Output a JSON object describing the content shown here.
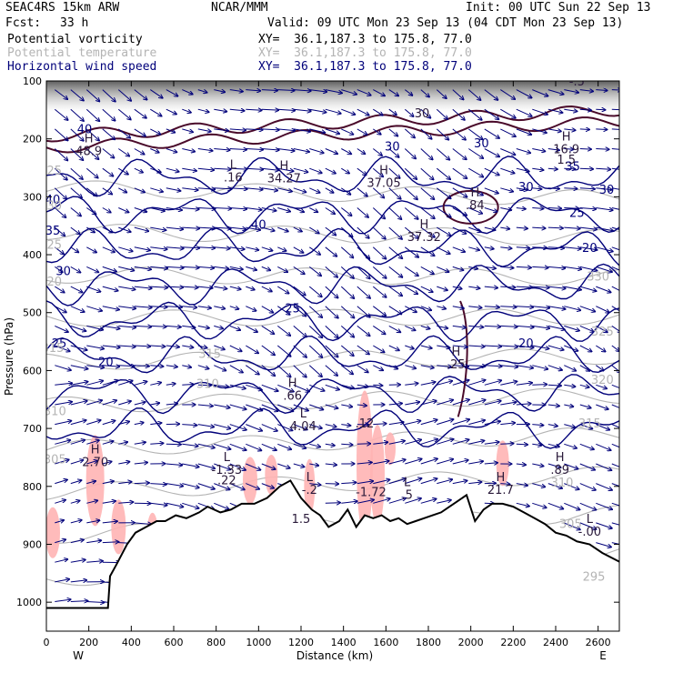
{
  "header": {
    "model": "SEAC4RS 15km ARW",
    "center": "NCAR/MMM",
    "init": "Init: 00 UTC Sun 22 Sep 13",
    "fcst_label": "Fcst:",
    "fcst_value": "33 h",
    "valid": "Valid: 09 UTC Mon 23 Sep 13 (04 CDT Mon 23 Sep 13)",
    "fields": [
      {
        "name": "Potential vorticity",
        "xy": "XY=  36.1,187.3 to 175.8, 77.0",
        "color": "#000000"
      },
      {
        "name": "Potential temperature",
        "xy": "XY=  36.1,187.3 to 175.8, 77.0",
        "color": "#b4b4b4"
      },
      {
        "name": "Horizontal wind speed",
        "xy": "XY=  36.1,187.3 to 175.8, 77.0",
        "color": "#00007a"
      }
    ]
  },
  "chart_data": {
    "type": "contour",
    "xlabel": "Distance (km)",
    "ylabel": "Pressure (hPa)",
    "xlim": [
      0,
      2700
    ],
    "ylim": [
      1050,
      100
    ],
    "xticks": [
      0,
      200,
      400,
      600,
      800,
      1000,
      1200,
      1400,
      1600,
      1800,
      2000,
      2200,
      2400,
      2600
    ],
    "yticks": [
      100,
      200,
      300,
      400,
      500,
      600,
      700,
      800,
      900,
      1000
    ],
    "west_label": "W",
    "east_label": "E",
    "colors": {
      "wind": "#00007a",
      "theta": "#b4b4b4",
      "pv": "#4a0a2a",
      "pv_shade": "#ffb4b4",
      "terrain": "#000000"
    },
    "terrain": {
      "x": [
        0,
        80,
        180,
        290,
        300,
        330,
        380,
        420,
        470,
        520,
        560,
        610,
        660,
        720,
        760,
        820,
        870,
        920,
        980,
        1040,
        1100,
        1150,
        1200,
        1250,
        1290,
        1330,
        1380,
        1420,
        1460,
        1500,
        1540,
        1580,
        1620,
        1660,
        1700,
        1740,
        1780,
        1820,
        1860,
        1900,
        1940,
        1980,
        2020,
        2060,
        2100,
        2150,
        2200,
        2250,
        2300,
        2350,
        2400,
        2450,
        2500,
        2560,
        2620,
        2700
      ],
      "p": [
        1010,
        1010,
        1010,
        1010,
        955,
        935,
        900,
        880,
        870,
        860,
        860,
        850,
        855,
        845,
        835,
        845,
        840,
        830,
        830,
        820,
        800,
        790,
        820,
        840,
        850,
        870,
        860,
        840,
        870,
        850,
        855,
        850,
        860,
        855,
        865,
        860,
        855,
        850,
        845,
        835,
        825,
        815,
        860,
        840,
        830,
        830,
        835,
        845,
        855,
        865,
        880,
        885,
        895,
        900,
        915,
        930
      ]
    },
    "wind_isotachs": [
      5,
      10,
      15,
      20,
      25,
      30,
      35,
      40
    ],
    "wind_labels": [
      {
        "x": 60,
        "p": 560,
        "t": "25"
      },
      {
        "x": 280,
        "p": 592,
        "t": "20"
      },
      {
        "x": 1160,
        "p": 500,
        "t": "25"
      },
      {
        "x": 2260,
        "p": 560,
        "t": "20"
      },
      {
        "x": 2560,
        "p": 395,
        "t": "20"
      },
      {
        "x": 2500,
        "p": 335,
        "t": "25"
      },
      {
        "x": 2640,
        "p": 295,
        "t": "30"
      },
      {
        "x": 2260,
        "p": 290,
        "t": "30"
      },
      {
        "x": 2050,
        "p": 215,
        "t": "30"
      },
      {
        "x": 80,
        "p": 435,
        "t": "30"
      },
      {
        "x": 30,
        "p": 365,
        "t": "35"
      },
      {
        "x": 30,
        "p": 312,
        "t": "40"
      },
      {
        "x": 180,
        "p": 190,
        "t": "40"
      },
      {
        "x": 1000,
        "p": 355,
        "t": "40"
      },
      {
        "x": 1630,
        "p": 220,
        "t": "30"
      },
      {
        "x": 2480,
        "p": 255,
        "t": "35"
      }
    ],
    "theta_labels": [
      {
        "x": 20,
        "p": 262,
        "t": "325"
      },
      {
        "x": 20,
        "p": 322,
        "t": "330"
      },
      {
        "x": 20,
        "p": 390,
        "t": "325"
      },
      {
        "x": 20,
        "p": 453,
        "t": "320"
      },
      {
        "x": 30,
        "p": 568,
        "t": "315"
      },
      {
        "x": 770,
        "p": 578,
        "t": "315"
      },
      {
        "x": 760,
        "p": 630,
        "t": "310"
      },
      {
        "x": 40,
        "p": 677,
        "t": "310"
      },
      {
        "x": 40,
        "p": 760,
        "t": "305"
      },
      {
        "x": 2600,
        "p": 445,
        "t": "330"
      },
      {
        "x": 2620,
        "p": 540,
        "t": "325"
      },
      {
        "x": 2620,
        "p": 623,
        "t": "320"
      },
      {
        "x": 2560,
        "p": 698,
        "t": "315"
      },
      {
        "x": 2430,
        "p": 800,
        "t": "310"
      },
      {
        "x": 2470,
        "p": 872,
        "t": "305"
      },
      {
        "x": 2580,
        "p": 963,
        "t": "295"
      }
    ],
    "hl_markers": [
      {
        "x": 230,
        "p": 762,
        "k": "H",
        "v": "2.70"
      },
      {
        "x": 850,
        "p": 775,
        "k": "L",
        "v": "-1.33"
      },
      {
        "x": 850,
        "p": 793,
        "k": "",
        "v": ".22"
      },
      {
        "x": 1210,
        "p": 700,
        "k": "L",
        "v": "4.04"
      },
      {
        "x": 1500,
        "p": 695,
        "k": "",
        "v": ".12"
      },
      {
        "x": 1160,
        "p": 647,
        "k": "H",
        "v": ".66"
      },
      {
        "x": 1240,
        "p": 810,
        "k": "L",
        "v": "-.2"
      },
      {
        "x": 1530,
        "p": 814,
        "k": "",
        "v": "-1.72"
      },
      {
        "x": 1700,
        "p": 818,
        "k": "L",
        "v": ".5"
      },
      {
        "x": 2140,
        "p": 810,
        "k": "H",
        "v": "21.7"
      },
      {
        "x": 2420,
        "p": 775,
        "k": "H",
        "v": ".89"
      },
      {
        "x": 2560,
        "p": 882,
        "k": "L",
        "v": "-.00"
      },
      {
        "x": 1930,
        "p": 593,
        "k": "H",
        "v": ".25"
      },
      {
        "x": 1780,
        "p": 373,
        "k": "H",
        "v": "37.32"
      },
      {
        "x": 1590,
        "p": 280,
        "k": "H",
        "v": "37.05"
      },
      {
        "x": 1120,
        "p": 272,
        "k": "H",
        "v": "34.27"
      },
      {
        "x": 880,
        "p": 270,
        "k": "L",
        "v": ".16"
      },
      {
        "x": 200,
        "p": 225,
        "k": "H",
        "v": "48.9"
      },
      {
        "x": 2020,
        "p": 318,
        "k": "H",
        "v": ".84"
      },
      {
        "x": 2450,
        "p": 222,
        "k": "H",
        "v": "16.9"
      },
      {
        "x": 2450,
        "p": 240,
        "k": "",
        "v": "1.5"
      },
      {
        "x": 2500,
        "p": 105,
        "k": "",
        "v": "-.5"
      },
      {
        "x": 1770,
        "p": 160,
        "k": "",
        "v": "30"
      },
      {
        "x": 1200,
        "p": 860,
        "k": "",
        "v": "1.5"
      }
    ]
  }
}
